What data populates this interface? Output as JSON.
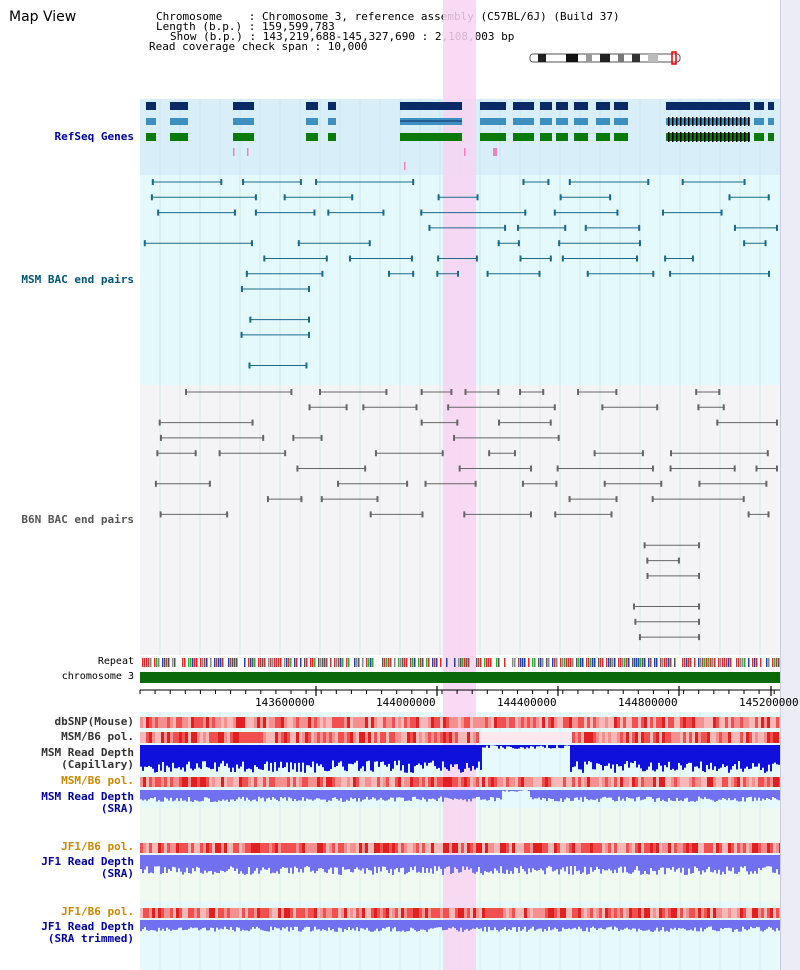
{
  "header": {
    "title": "Map View",
    "info_lines": [
      "Chromosome    : Chromosome 3, reference assembly (C57BL/6J) (Build 37)",
      "Length (b.p.) : 159,599,783",
      "Show (b.p.) : 143,219,688-145,327,690 : 2,108,003 bp",
      "Read coverage check span : 10,000"
    ]
  },
  "tracks": {
    "refseq": "RefSeq Genes",
    "msm_bac": "MSM BAC end pairs",
    "b6n_bac": "B6N BAC end pairs",
    "repeat": "Repeat",
    "chromosome": "chromosome 3",
    "dbsnp": "dbSNP(Mouse)",
    "msm_b6_pol_1": "MSM/B6 pol.",
    "msm_depth_cap_1": "MSM Read Depth",
    "msm_depth_cap_2": "(Capillary)",
    "msm_b6_pol_2": "MSM/B6 pol.",
    "msm_depth_sra_1": "MSM Read Depth",
    "msm_depth_sra_2": "(SRA)",
    "jf1_b6_pol_1": "JF1/B6 pol.",
    "jf1_depth_sra_1": "JF1 Read Depth",
    "jf1_depth_sra_2": "(SRA)",
    "jf1_b6_pol_2": "JF1/B6 pol.",
    "jf1_depth_trim_1": "JF1 Read Depth",
    "jf1_depth_trim_2": "(SRA trimmed)"
  },
  "axis": {
    "ticks": [
      "143600000",
      "144000000",
      "144400000",
      "144800000",
      "145200000"
    ]
  },
  "colors": {
    "refseq_bg": "#d8effa",
    "msm_bg": "#e4f9fb",
    "b6n_bg": "#f4f4f6",
    "highlight": "#f8d4f2",
    "gene_dark": "#0a2a66",
    "gene_mid": "#3d8fc0",
    "gene_green": "#0a7a0a",
    "msm_line": "#1a6a8a",
    "b6n_line": "#666666",
    "chrom_green": "#0a6a0a",
    "label_blue": "#0000a0",
    "label_teal": "#005577",
    "label_orange": "#cc8800"
  }
}
